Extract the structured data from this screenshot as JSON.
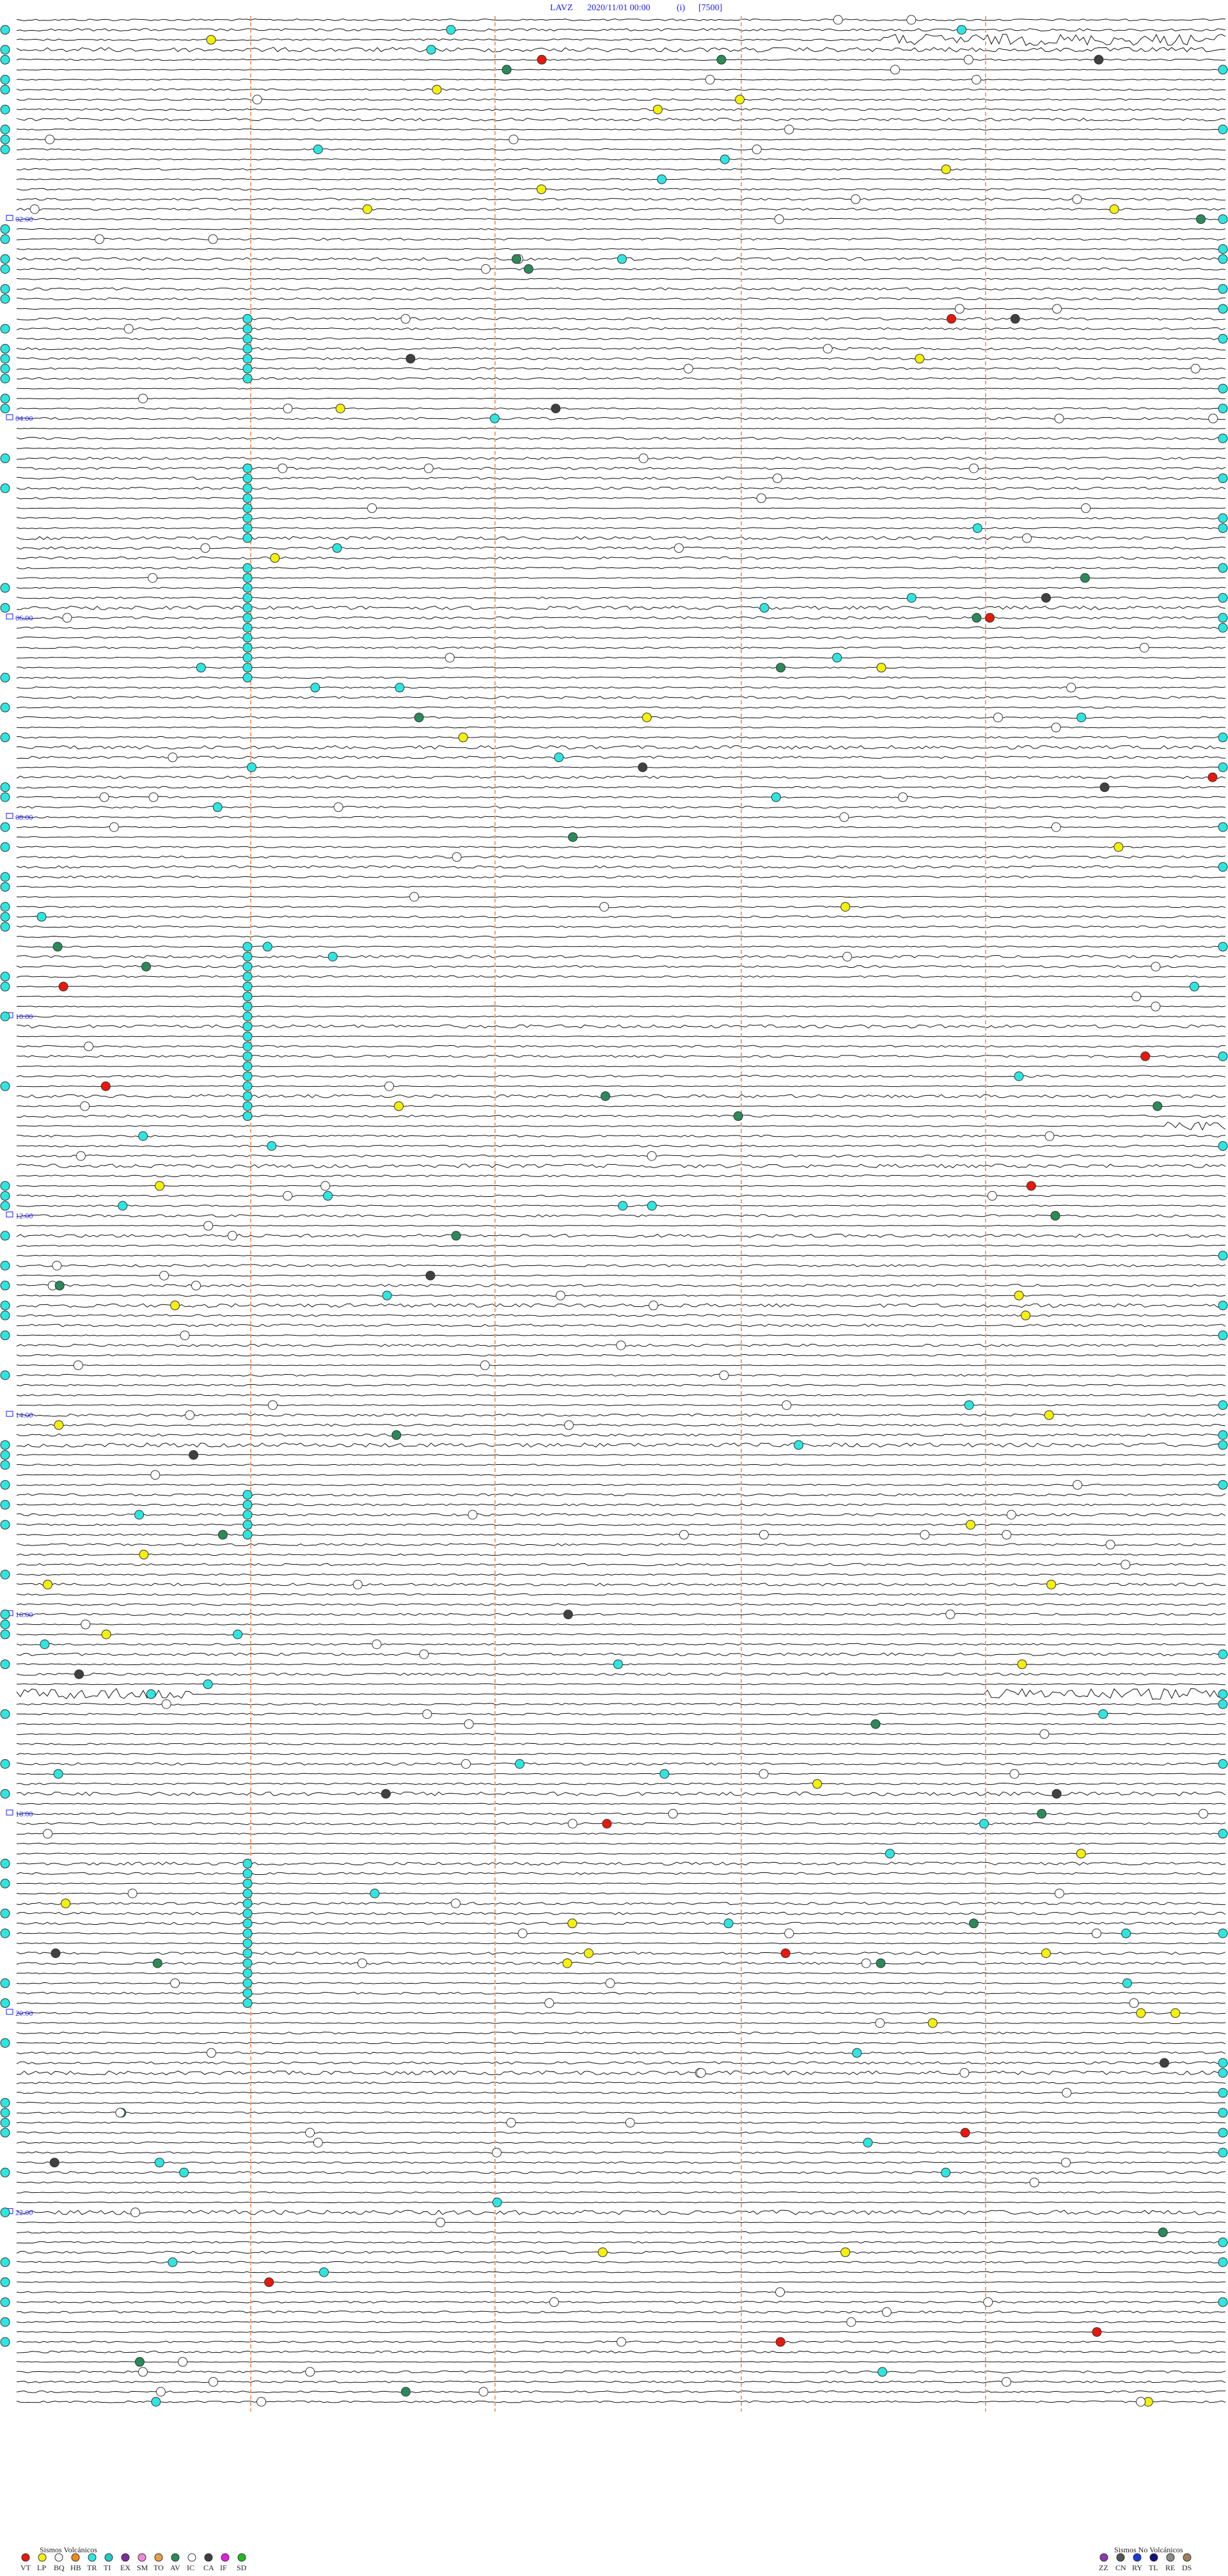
{
  "header": {
    "station": "LAVZ",
    "datetime": "2020/11/01 00:00",
    "mode": "(i)",
    "scale": "[7500]"
  },
  "time_labels": [
    "02:00",
    "04:00",
    "06:00",
    "08:00",
    "10:00",
    "12:00",
    "14:00",
    "16:00",
    "18:00",
    "20:00",
    "22:00"
  ],
  "legend": {
    "volcanic": {
      "title": "Sismos Volcánicos",
      "items": [
        {
          "code": "VT",
          "color": "#e8180c"
        },
        {
          "code": "LP",
          "color": "#f5f00a"
        },
        {
          "code": "BQ",
          "color": "#f5f5f5"
        },
        {
          "code": "HB",
          "color": "#f08a1c"
        },
        {
          "code": "TR",
          "color": "#2ee6e0"
        },
        {
          "code": "TI",
          "color": "#20c8c8"
        },
        {
          "code": "EX",
          "color": "#7a2a9a"
        },
        {
          "code": "SM",
          "color": "#f08ad8"
        },
        {
          "code": "TO",
          "color": "#e8a040"
        },
        {
          "code": "AV",
          "color": "#2a8a5a"
        },
        {
          "code": "IC",
          "color": "#ffffff"
        },
        {
          "code": "CA",
          "color": "#404040"
        },
        {
          "code": "IF",
          "color": "#e020e0"
        },
        {
          "code": "SD",
          "color": "#22b822"
        }
      ]
    },
    "non_volcanic": {
      "title": "Sismos No Volcánicos",
      "items": [
        {
          "code": "ZZ",
          "color": "#8a3aaa"
        },
        {
          "code": "CN",
          "color": "#555555"
        },
        {
          "code": "RY",
          "color": "#1a3ad8"
        },
        {
          "code": "TL",
          "color": "#101080"
        },
        {
          "code": "RE",
          "color": "#8a8a8a"
        },
        {
          "code": "DS",
          "color": "#a08060"
        }
      ]
    }
  }
}
